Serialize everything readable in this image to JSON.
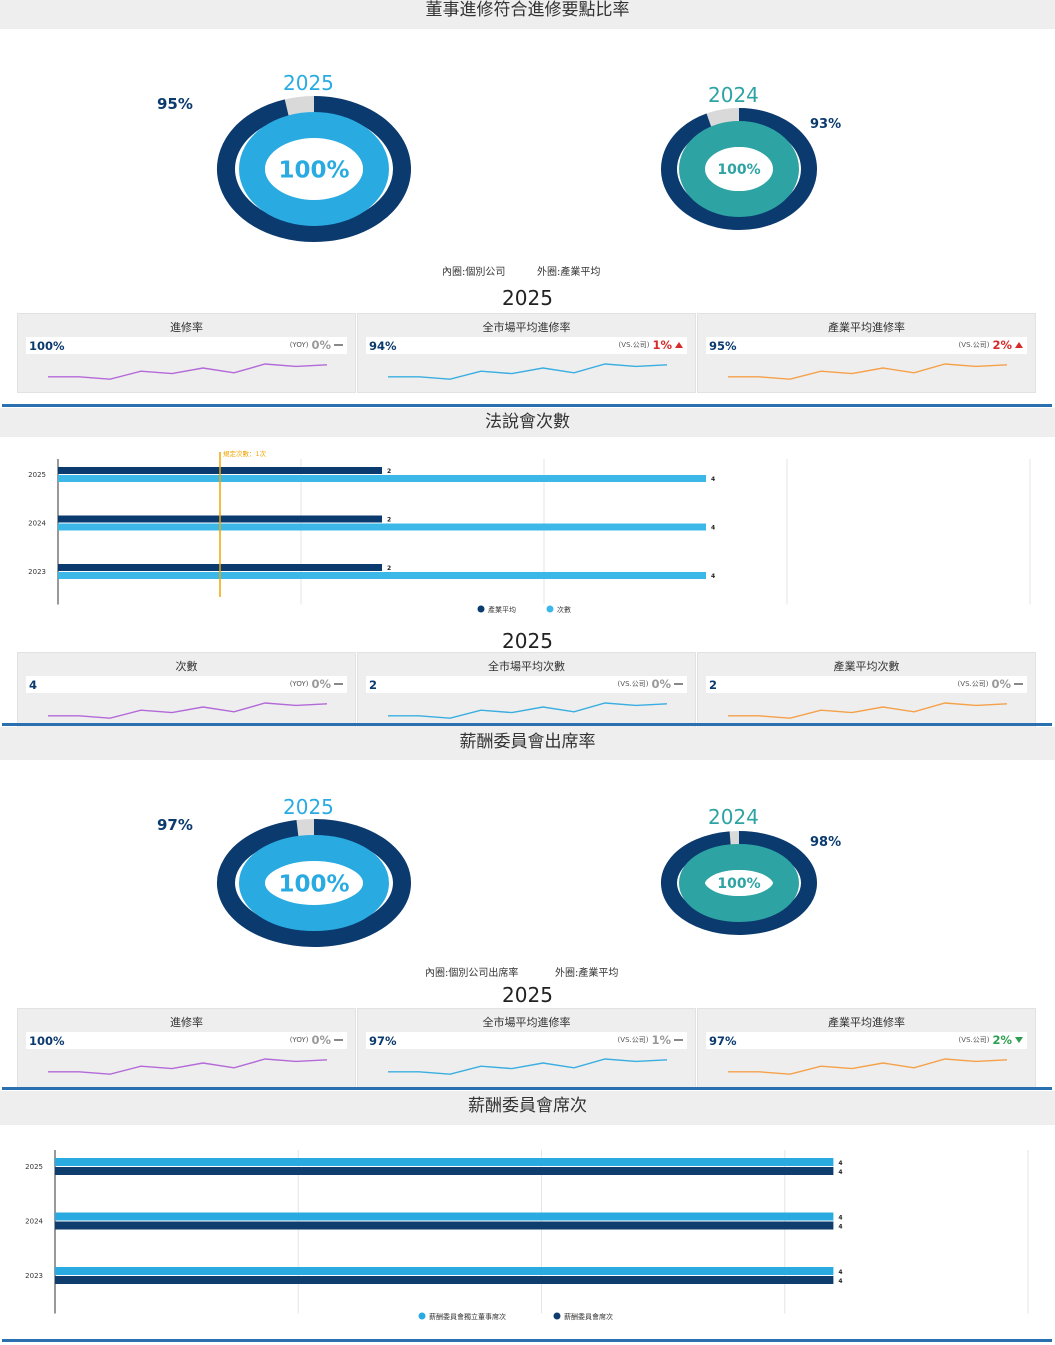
{
  "section1": {
    "title": "董事進修符合進修要點比率",
    "donut_2025": {
      "year": "2025",
      "inner_label": "100%",
      "outer_label": "95%",
      "inner_value": 100,
      "outer_value": 95
    },
    "donut_2024": {
      "year": "2024",
      "inner_label": "100%",
      "outer_label": "93%",
      "inner_value": 100,
      "outer_value": 93
    },
    "legend": {
      "inner": "內圈:個別公司",
      "outer": "外圈:產業平均"
    },
    "summary_year": "2025",
    "cards": [
      {
        "title": "進修率",
        "value": "100%",
        "compare": "(YOY)",
        "change": "0%",
        "direction": "neutral",
        "color": "#b36ad8"
      },
      {
        "title": "全市場平均進修率",
        "value": "94%",
        "compare": "(VS.公司)",
        "change": "1%",
        "direction": "up",
        "color": "#3aaee0"
      },
      {
        "title": "產業平均進修率",
        "value": "95%",
        "compare": "(VS.公司)",
        "change": "2%",
        "direction": "up",
        "color": "#f5a14a"
      }
    ]
  },
  "section2": {
    "title": "法說會次數",
    "reference_line_label": "規定次數：1次",
    "summary_year": "2025",
    "cards": [
      {
        "title": "次數",
        "value": "4",
        "compare": "(YOY)",
        "change": "0%",
        "direction": "neutral",
        "color": "#b36ad8"
      },
      {
        "title": "全市場平均次數",
        "value": "2",
        "compare": "(VS.公司)",
        "change": "0%",
        "direction": "neutral",
        "color": "#3aaee0"
      },
      {
        "title": "產業平均次數",
        "value": "2",
        "compare": "(VS.公司)",
        "change": "0%",
        "direction": "neutral",
        "color": "#f5a14a"
      }
    ]
  },
  "section3": {
    "title": "薪酬委員會出席率",
    "donut_2025": {
      "year": "2025",
      "inner_label": "100%",
      "outer_label": "97%",
      "inner_value": 100,
      "outer_value": 97
    },
    "donut_2024": {
      "year": "2024",
      "inner_label": "100%",
      "outer_label": "98%",
      "inner_value": 100,
      "outer_value": 98
    },
    "legend": {
      "inner": "內圈:個別公司出席率",
      "outer": "外圈:產業平均"
    },
    "summary_year": "2025",
    "cards": [
      {
        "title": "進修率",
        "value": "100%",
        "compare": "(YOY)",
        "change": "0%",
        "direction": "neutral",
        "color": "#b36ad8"
      },
      {
        "title": "全市場平均進修率",
        "value": "97%",
        "compare": "(VS.公司)",
        "change": "1%",
        "direction": "neutral",
        "color": "#3aaee0"
      },
      {
        "title": "產業平均進修率",
        "value": "97%",
        "compare": "(VS.公司)",
        "change": "2%",
        "direction": "down",
        "color": "#f5a14a"
      }
    ]
  },
  "section4": {
    "title": "薪酬委員會席次"
  },
  "colors": {
    "navy": "#0b3a6f",
    "sky": "#29abe2",
    "teal": "#2ea3a3",
    "line": "#2a6fb0",
    "ref": "#f0a500"
  },
  "chart_data": [
    {
      "type": "pie",
      "title": "董事進修符合進修要點比率",
      "series": [
        {
          "year": "2025",
          "inner": 100,
          "outer": 95
        },
        {
          "year": "2024",
          "inner": 100,
          "outer": 93
        }
      ]
    },
    {
      "type": "bar",
      "title": "法說會次數",
      "categories": [
        "2025",
        "2024",
        "2023"
      ],
      "series": [
        {
          "name": "產業平均",
          "values": [
            2,
            2,
            2
          ]
        },
        {
          "name": "次數",
          "values": [
            4,
            4,
            4
          ]
        }
      ],
      "xlim": [
        0,
        6
      ],
      "reference_line": 1
    },
    {
      "type": "pie",
      "title": "薪酬委員會出席率",
      "series": [
        {
          "year": "2025",
          "inner": 100,
          "outer": 97
        },
        {
          "year": "2024",
          "inner": 100,
          "outer": 98
        }
      ]
    },
    {
      "type": "bar",
      "title": "薪酬委員會席次",
      "categories": [
        "2025",
        "2024",
        "2023"
      ],
      "series": [
        {
          "name": "薪酬委員會獨立董事席次",
          "values": [
            4,
            4,
            4
          ]
        },
        {
          "name": "薪酬委員會席次",
          "values": [
            4,
            4,
            4
          ]
        }
      ],
      "xlim": [
        0,
        5
      ]
    }
  ]
}
